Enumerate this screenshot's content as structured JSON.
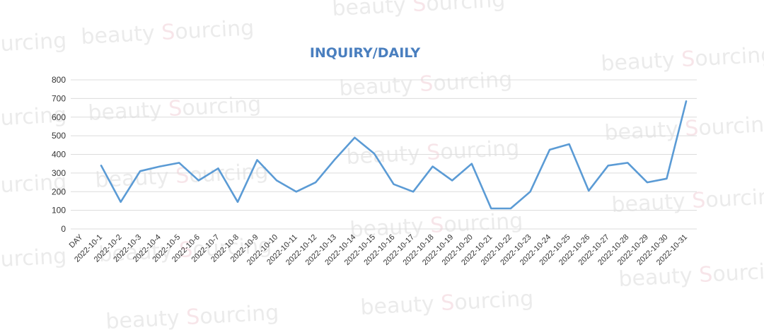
{
  "watermark": {
    "prefix": "beauty ",
    "s": "S",
    "suffix": "ourcing"
  },
  "chart_data": {
    "type": "line",
    "title": "INQUIRY/DAILY",
    "xlabel": "",
    "ylabel": "",
    "ylim": [
      0,
      800
    ],
    "yticks": [
      0,
      100,
      200,
      300,
      400,
      500,
      600,
      700,
      800
    ],
    "grid": true,
    "legend": "none",
    "line_color": "#5b9bd5",
    "x_axis_first_label": "DAY",
    "categories": [
      "2022-10-1",
      "2022-10-2",
      "2022-10-3",
      "2022-10-4",
      "2022-10-5",
      "2022-10-6",
      "2022-10-7",
      "2022-10-8",
      "2022-10-9",
      "2022-10-10",
      "2022-10-11",
      "2022-10-12",
      "2022-10-13",
      "2022-10-14",
      "2022-10-15",
      "2022-10-16",
      "2022-10-17",
      "2022-10-18",
      "2022-10-19",
      "2022-10-20",
      "2022-10-21",
      "2022-10-22",
      "2022-10-23",
      "2022-10-24",
      "2022-10-25",
      "2022-10-26",
      "2022-10-27",
      "2022-10-28",
      "2022-10-29",
      "2022-10-30",
      "2022-10-31"
    ],
    "values": [
      340,
      145,
      310,
      335,
      355,
      260,
      325,
      145,
      370,
      260,
      200,
      250,
      375,
      490,
      405,
      240,
      200,
      335,
      260,
      350,
      110,
      110,
      200,
      425,
      455,
      205,
      340,
      355,
      250,
      270,
      685
    ]
  }
}
